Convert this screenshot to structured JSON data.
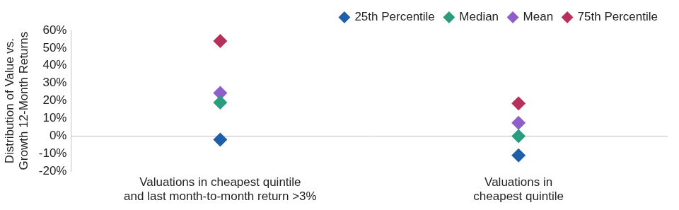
{
  "chart_data": {
    "type": "scatter",
    "y_label": [
      "Distribution of Value vs.",
      "Growth 12-Month Returns"
    ],
    "categories": [
      [
        "Valuations in cheapest quintile",
        "and last month-to-month return >3%"
      ],
      [
        "Valuations in",
        "cheapest quintile"
      ]
    ],
    "series": [
      {
        "name": "25th Percentile",
        "color": "#1f5fa8",
        "marker": "diamond",
        "values": [
          -2,
          -11
        ]
      },
      {
        "name": "Median",
        "color": "#2a9d7f",
        "marker": "diamond",
        "values": [
          19,
          0
        ]
      },
      {
        "name": "Mean",
        "color": "#8e5fc8",
        "marker": "diamond",
        "values": [
          24.5,
          7.5
        ]
      },
      {
        "name": "75th Percentile",
        "color": "#b5305a",
        "marker": "diamond",
        "values": [
          54,
          18.5
        ]
      }
    ],
    "ylim": [
      -20,
      60
    ],
    "yticks": [
      {
        "value": -20,
        "label": "-20%"
      },
      {
        "value": -10,
        "label": "-10%"
      },
      {
        "value": 0,
        "label": "0%"
      },
      {
        "value": 10,
        "label": "10%"
      },
      {
        "value": 20,
        "label": "20%"
      },
      {
        "value": 30,
        "label": "30%"
      },
      {
        "value": 40,
        "label": "40%"
      },
      {
        "value": 50,
        "label": "50%"
      },
      {
        "value": 60,
        "label": "60%"
      }
    ],
    "grid": false,
    "legend": "top-right"
  }
}
